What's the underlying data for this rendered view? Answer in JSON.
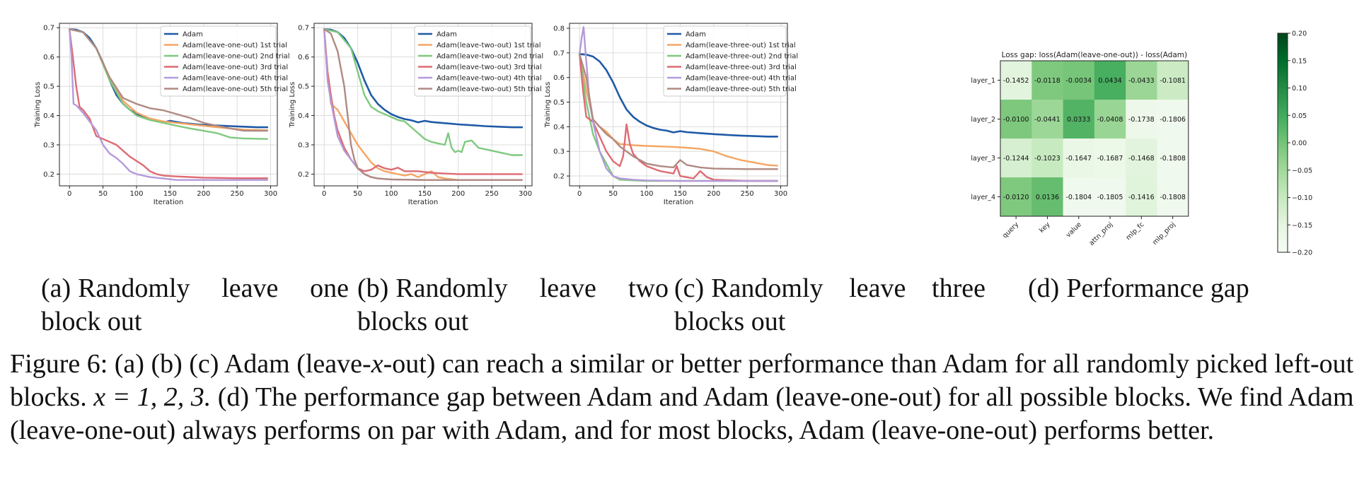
{
  "chart_data": [
    {
      "id": "a",
      "type": "line",
      "xlabel": "Iteration",
      "ylabel": "Training Loss",
      "xlim": [
        -15,
        310
      ],
      "ylim": [
        0.16,
        0.715
      ],
      "xticks": [
        0,
        50,
        100,
        150,
        200,
        250,
        300
      ],
      "yticks": [
        0.2,
        0.3,
        0.4,
        0.5,
        0.6,
        0.7
      ],
      "grid": true,
      "legend": "top-right",
      "series": [
        {
          "name": "Adam",
          "color": "#1f5aa6",
          "x": [
            0,
            10,
            20,
            30,
            40,
            50,
            60,
            70,
            80,
            90,
            100,
            110,
            120,
            130,
            140,
            150,
            160,
            170,
            180,
            190,
            200,
            220,
            240,
            260,
            280,
            295
          ],
          "y": [
            0.695,
            0.693,
            0.685,
            0.665,
            0.63,
            0.58,
            0.52,
            0.47,
            0.44,
            0.42,
            0.405,
            0.395,
            0.388,
            0.384,
            0.377,
            0.382,
            0.378,
            0.374,
            0.372,
            0.37,
            0.368,
            0.366,
            0.364,
            0.362,
            0.36,
            0.36
          ]
        },
        {
          "name": "Adam(leave-one-out) 1st trial",
          "color": "#f5a563",
          "x": [
            0,
            20,
            40,
            60,
            80,
            100,
            120,
            140,
            160,
            180,
            200,
            220,
            240,
            260,
            295
          ],
          "y": [
            0.695,
            0.685,
            0.63,
            0.52,
            0.45,
            0.41,
            0.39,
            0.38,
            0.375,
            0.37,
            0.365,
            0.36,
            0.356,
            0.352,
            0.35
          ]
        },
        {
          "name": "Adam(leave-one-out) 2nd trial",
          "color": "#7fc97f",
          "x": [
            0,
            20,
            40,
            60,
            80,
            100,
            120,
            140,
            160,
            180,
            200,
            220,
            240,
            260,
            295
          ],
          "y": [
            0.695,
            0.685,
            0.63,
            0.52,
            0.44,
            0.4,
            0.385,
            0.375,
            0.365,
            0.356,
            0.348,
            0.34,
            0.325,
            0.322,
            0.32
          ]
        },
        {
          "name": "Adam(leave-one-out) 3rd trial",
          "color": "#de6b73",
          "x": [
            0,
            5,
            10,
            15,
            20,
            30,
            40,
            50,
            60,
            70,
            80,
            90,
            100,
            110,
            120,
            130,
            140,
            160,
            200,
            250,
            295
          ],
          "y": [
            0.695,
            0.6,
            0.5,
            0.43,
            0.42,
            0.39,
            0.33,
            0.32,
            0.31,
            0.3,
            0.28,
            0.26,
            0.245,
            0.23,
            0.21,
            0.2,
            0.195,
            0.192,
            0.188,
            0.186,
            0.186
          ]
        },
        {
          "name": "Adam(leave-one-out) 4th trial",
          "color": "#b49ad9",
          "x": [
            0,
            3,
            6,
            10,
            20,
            30,
            40,
            50,
            60,
            70,
            80,
            90,
            100,
            110,
            120,
            140,
            160,
            200,
            250,
            295
          ],
          "y": [
            0.695,
            0.6,
            0.44,
            0.435,
            0.41,
            0.38,
            0.35,
            0.3,
            0.27,
            0.255,
            0.235,
            0.21,
            0.2,
            0.195,
            0.19,
            0.185,
            0.18,
            0.18,
            0.18,
            0.18
          ]
        },
        {
          "name": "Adam(leave-one-out) 5th trial",
          "color": "#b08a82",
          "x": [
            0,
            20,
            40,
            60,
            80,
            100,
            120,
            140,
            160,
            180,
            200,
            220,
            240,
            260,
            295
          ],
          "y": [
            0.695,
            0.685,
            0.63,
            0.53,
            0.46,
            0.44,
            0.425,
            0.418,
            0.405,
            0.392,
            0.375,
            0.365,
            0.356,
            0.348,
            0.348
          ]
        }
      ]
    },
    {
      "id": "b",
      "type": "line",
      "xlabel": "Iteration",
      "ylabel": "Training Loss",
      "xlim": [
        -15,
        310
      ],
      "ylim": [
        0.16,
        0.715
      ],
      "xticks": [
        0,
        50,
        100,
        150,
        200,
        250,
        300
      ],
      "yticks": [
        0.2,
        0.3,
        0.4,
        0.5,
        0.6,
        0.7
      ],
      "grid": true,
      "legend": "top-right",
      "series": [
        {
          "name": "Adam",
          "color": "#1f5aa6",
          "x": [
            0,
            10,
            20,
            30,
            40,
            50,
            60,
            70,
            80,
            90,
            100,
            110,
            120,
            130,
            140,
            150,
            160,
            180,
            200,
            220,
            240,
            260,
            280,
            295
          ],
          "y": [
            0.695,
            0.693,
            0.685,
            0.665,
            0.63,
            0.58,
            0.52,
            0.47,
            0.44,
            0.42,
            0.405,
            0.395,
            0.388,
            0.384,
            0.377,
            0.382,
            0.378,
            0.374,
            0.37,
            0.367,
            0.364,
            0.362,
            0.36,
            0.36
          ]
        },
        {
          "name": "Adam(leave-two-out) 1st trial",
          "color": "#f5a563",
          "x": [
            0,
            5,
            10,
            20,
            30,
            40,
            50,
            60,
            70,
            80,
            90,
            100,
            110,
            120,
            130,
            140,
            150,
            160,
            170,
            180,
            200,
            250,
            295
          ],
          "y": [
            0.695,
            0.55,
            0.44,
            0.42,
            0.38,
            0.34,
            0.3,
            0.27,
            0.24,
            0.22,
            0.21,
            0.205,
            0.2,
            0.195,
            0.2,
            0.19,
            0.2,
            0.21,
            0.19,
            0.185,
            0.18,
            0.18,
            0.18
          ]
        },
        {
          "name": "Adam(leave-two-out) 2nd trial",
          "color": "#7fc97f",
          "x": [
            0,
            20,
            40,
            50,
            60,
            70,
            80,
            90,
            100,
            110,
            120,
            130,
            140,
            150,
            160,
            170,
            180,
            185,
            190,
            195,
            200,
            205,
            210,
            220,
            230,
            240,
            260,
            280,
            295
          ],
          "y": [
            0.695,
            0.685,
            0.63,
            0.55,
            0.47,
            0.43,
            0.415,
            0.405,
            0.395,
            0.385,
            0.38,
            0.36,
            0.34,
            0.32,
            0.31,
            0.305,
            0.3,
            0.34,
            0.29,
            0.275,
            0.28,
            0.275,
            0.31,
            0.315,
            0.29,
            0.285,
            0.275,
            0.265,
            0.265
          ]
        },
        {
          "name": "Adam(leave-two-out) 3rd trial",
          "color": "#de6b73",
          "x": [
            0,
            5,
            10,
            15,
            20,
            30,
            40,
            50,
            60,
            70,
            80,
            90,
            100,
            110,
            120,
            140,
            160,
            180,
            200,
            250,
            295
          ],
          "y": [
            0.695,
            0.55,
            0.47,
            0.4,
            0.35,
            0.29,
            0.25,
            0.22,
            0.21,
            0.215,
            0.23,
            0.22,
            0.215,
            0.222,
            0.21,
            0.21,
            0.205,
            0.202,
            0.2,
            0.2,
            0.2
          ]
        },
        {
          "name": "Adam(leave-two-out) 4th trial",
          "color": "#b49ad9",
          "x": [
            0,
            5,
            10,
            15,
            20,
            30,
            40,
            50,
            60,
            70,
            80,
            100,
            150,
            200,
            250,
            295
          ],
          "y": [
            0.695,
            0.52,
            0.45,
            0.39,
            0.33,
            0.28,
            0.25,
            0.22,
            0.2,
            0.19,
            0.185,
            0.182,
            0.18,
            0.18,
            0.18,
            0.18
          ]
        },
        {
          "name": "Adam(leave-two-out) 5th trial",
          "color": "#b08a82",
          "x": [
            0,
            10,
            20,
            30,
            35,
            40,
            45,
            50,
            60,
            70,
            80,
            100,
            150,
            200,
            250,
            295
          ],
          "y": [
            0.695,
            0.68,
            0.62,
            0.5,
            0.4,
            0.3,
            0.25,
            0.22,
            0.2,
            0.19,
            0.185,
            0.182,
            0.18,
            0.18,
            0.18,
            0.18
          ]
        }
      ]
    },
    {
      "id": "c",
      "type": "line",
      "xlabel": "Iteration",
      "ylabel": "Training Loss",
      "xlim": [
        -15,
        310
      ],
      "ylim": [
        0.16,
        0.82
      ],
      "xticks": [
        0,
        50,
        100,
        150,
        200,
        250,
        300
      ],
      "yticks": [
        0.2,
        0.3,
        0.4,
        0.5,
        0.6,
        0.7,
        0.8
      ],
      "grid": true,
      "legend": "top-right",
      "series": [
        {
          "name": "Adam",
          "color": "#1f5aa6",
          "x": [
            0,
            10,
            20,
            30,
            40,
            50,
            60,
            70,
            80,
            90,
            100,
            110,
            120,
            130,
            140,
            150,
            160,
            180,
            200,
            220,
            240,
            260,
            280,
            295
          ],
          "y": [
            0.695,
            0.693,
            0.685,
            0.665,
            0.63,
            0.58,
            0.52,
            0.47,
            0.44,
            0.42,
            0.405,
            0.395,
            0.388,
            0.384,
            0.377,
            0.382,
            0.378,
            0.374,
            0.37,
            0.367,
            0.364,
            0.362,
            0.36,
            0.36
          ]
        },
        {
          "name": "Adam(leave-three-out) 1st trial",
          "color": "#f5a563",
          "x": [
            0,
            10,
            20,
            30,
            40,
            50,
            60,
            80,
            100,
            120,
            140,
            160,
            180,
            200,
            220,
            240,
            260,
            280,
            295
          ],
          "y": [
            0.695,
            0.55,
            0.43,
            0.4,
            0.38,
            0.35,
            0.33,
            0.325,
            0.322,
            0.32,
            0.318,
            0.315,
            0.31,
            0.3,
            0.28,
            0.265,
            0.255,
            0.245,
            0.242
          ]
        },
        {
          "name": "Adam(leave-three-out) 2nd trial",
          "color": "#7fc97f",
          "x": [
            0,
            10,
            20,
            30,
            40,
            50,
            60,
            80,
            100,
            150,
            200,
            250,
            295
          ],
          "y": [
            0.695,
            0.5,
            0.37,
            0.3,
            0.25,
            0.2,
            0.185,
            0.182,
            0.18,
            0.18,
            0.18,
            0.18,
            0.18
          ]
        },
        {
          "name": "Adam(leave-three-out) 3rd trial",
          "color": "#de6b73",
          "x": [
            0,
            5,
            10,
            20,
            30,
            40,
            50,
            60,
            65,
            70,
            75,
            80,
            90,
            100,
            110,
            120,
            130,
            140,
            145,
            150,
            160,
            170,
            180,
            190,
            200,
            250,
            295
          ],
          "y": [
            0.695,
            0.55,
            0.44,
            0.42,
            0.36,
            0.3,
            0.26,
            0.24,
            0.28,
            0.41,
            0.33,
            0.29,
            0.26,
            0.24,
            0.23,
            0.22,
            0.215,
            0.21,
            0.24,
            0.2,
            0.195,
            0.19,
            0.22,
            0.195,
            0.185,
            0.18,
            0.18
          ]
        },
        {
          "name": "Adam(leave-three-out) 4th trial",
          "color": "#b49ad9",
          "x": [
            0,
            3,
            6,
            9,
            12,
            15,
            20,
            30,
            40,
            50,
            60,
            80,
            100,
            150,
            200,
            250,
            295
          ],
          "y": [
            0.695,
            0.76,
            0.805,
            0.7,
            0.6,
            0.5,
            0.42,
            0.3,
            0.23,
            0.2,
            0.19,
            0.185,
            0.182,
            0.18,
            0.18,
            0.18,
            0.18
          ]
        },
        {
          "name": "Adam(leave-three-out) 5th trial",
          "color": "#b08a82",
          "x": [
            0,
            10,
            20,
            30,
            40,
            50,
            60,
            80,
            100,
            120,
            140,
            150,
            160,
            180,
            200,
            250,
            295
          ],
          "y": [
            0.695,
            0.6,
            0.43,
            0.4,
            0.37,
            0.35,
            0.32,
            0.28,
            0.25,
            0.24,
            0.235,
            0.265,
            0.245,
            0.235,
            0.23,
            0.228,
            0.228
          ]
        }
      ]
    },
    {
      "id": "d",
      "type": "heatmap",
      "title": "Loss gap: loss(Adam(leave-one-out)) - loss(Adam)",
      "rows": [
        "layer_1",
        "layer_2",
        "layer_3",
        "layer_4"
      ],
      "cols": [
        "query",
        "key",
        "value",
        "attn_proj",
        "mlp_fc",
        "mlp_proj"
      ],
      "values": [
        [
          -0.1452,
          -0.0118,
          -0.0034,
          0.0434,
          -0.0433,
          -0.1081
        ],
        [
          -0.01,
          -0.0441,
          0.0333,
          -0.0408,
          -0.1738,
          -0.1806
        ],
        [
          -0.1244,
          -0.1023,
          -0.1647,
          -0.1687,
          -0.1468,
          -0.1808
        ],
        [
          -0.012,
          0.0136,
          -0.1804,
          -0.1805,
          -0.1416,
          -0.1808
        ]
      ],
      "vmin": -0.2,
      "vmax": 0.2,
      "colorbar_ticks": [
        0.2,
        0.15,
        0.1,
        0.05,
        0.0,
        -0.05,
        -0.1,
        -0.15,
        -0.2
      ],
      "colorbar_labels": [
        "0.20",
        "0.15",
        "0.10",
        "0.05",
        "0.00",
        "−0.05",
        "−0.10",
        "−0.15",
        "−0.20"
      ],
      "colormap": "Greens"
    }
  ],
  "subcaptions": [
    {
      "label": "(a)",
      "text": "Randomly leave one block out"
    },
    {
      "label": "(b)",
      "text": "Randomly leave two blocks out"
    },
    {
      "label": "(c)",
      "text": "Randomly leave three blocks out"
    },
    {
      "label": "(d)",
      "text": "Performance gap"
    }
  ],
  "caption": {
    "label": "Figure 6:",
    "part1": "(a) (b) (c) Adam (leave-",
    "math_x": "x",
    "part2": "-out) can reach a similar or better performance than Adam for all randomly picked left-out blocks.",
    "math_eq": "x = 1, 2, 3.",
    "part3": "(d) The performance gap between Adam and Adam (leave-one-out) for all possible blocks. We find Adam (leave-one-out) always performs on par with Adam, and for most blocks, Adam (leave-one-out) performs better."
  }
}
